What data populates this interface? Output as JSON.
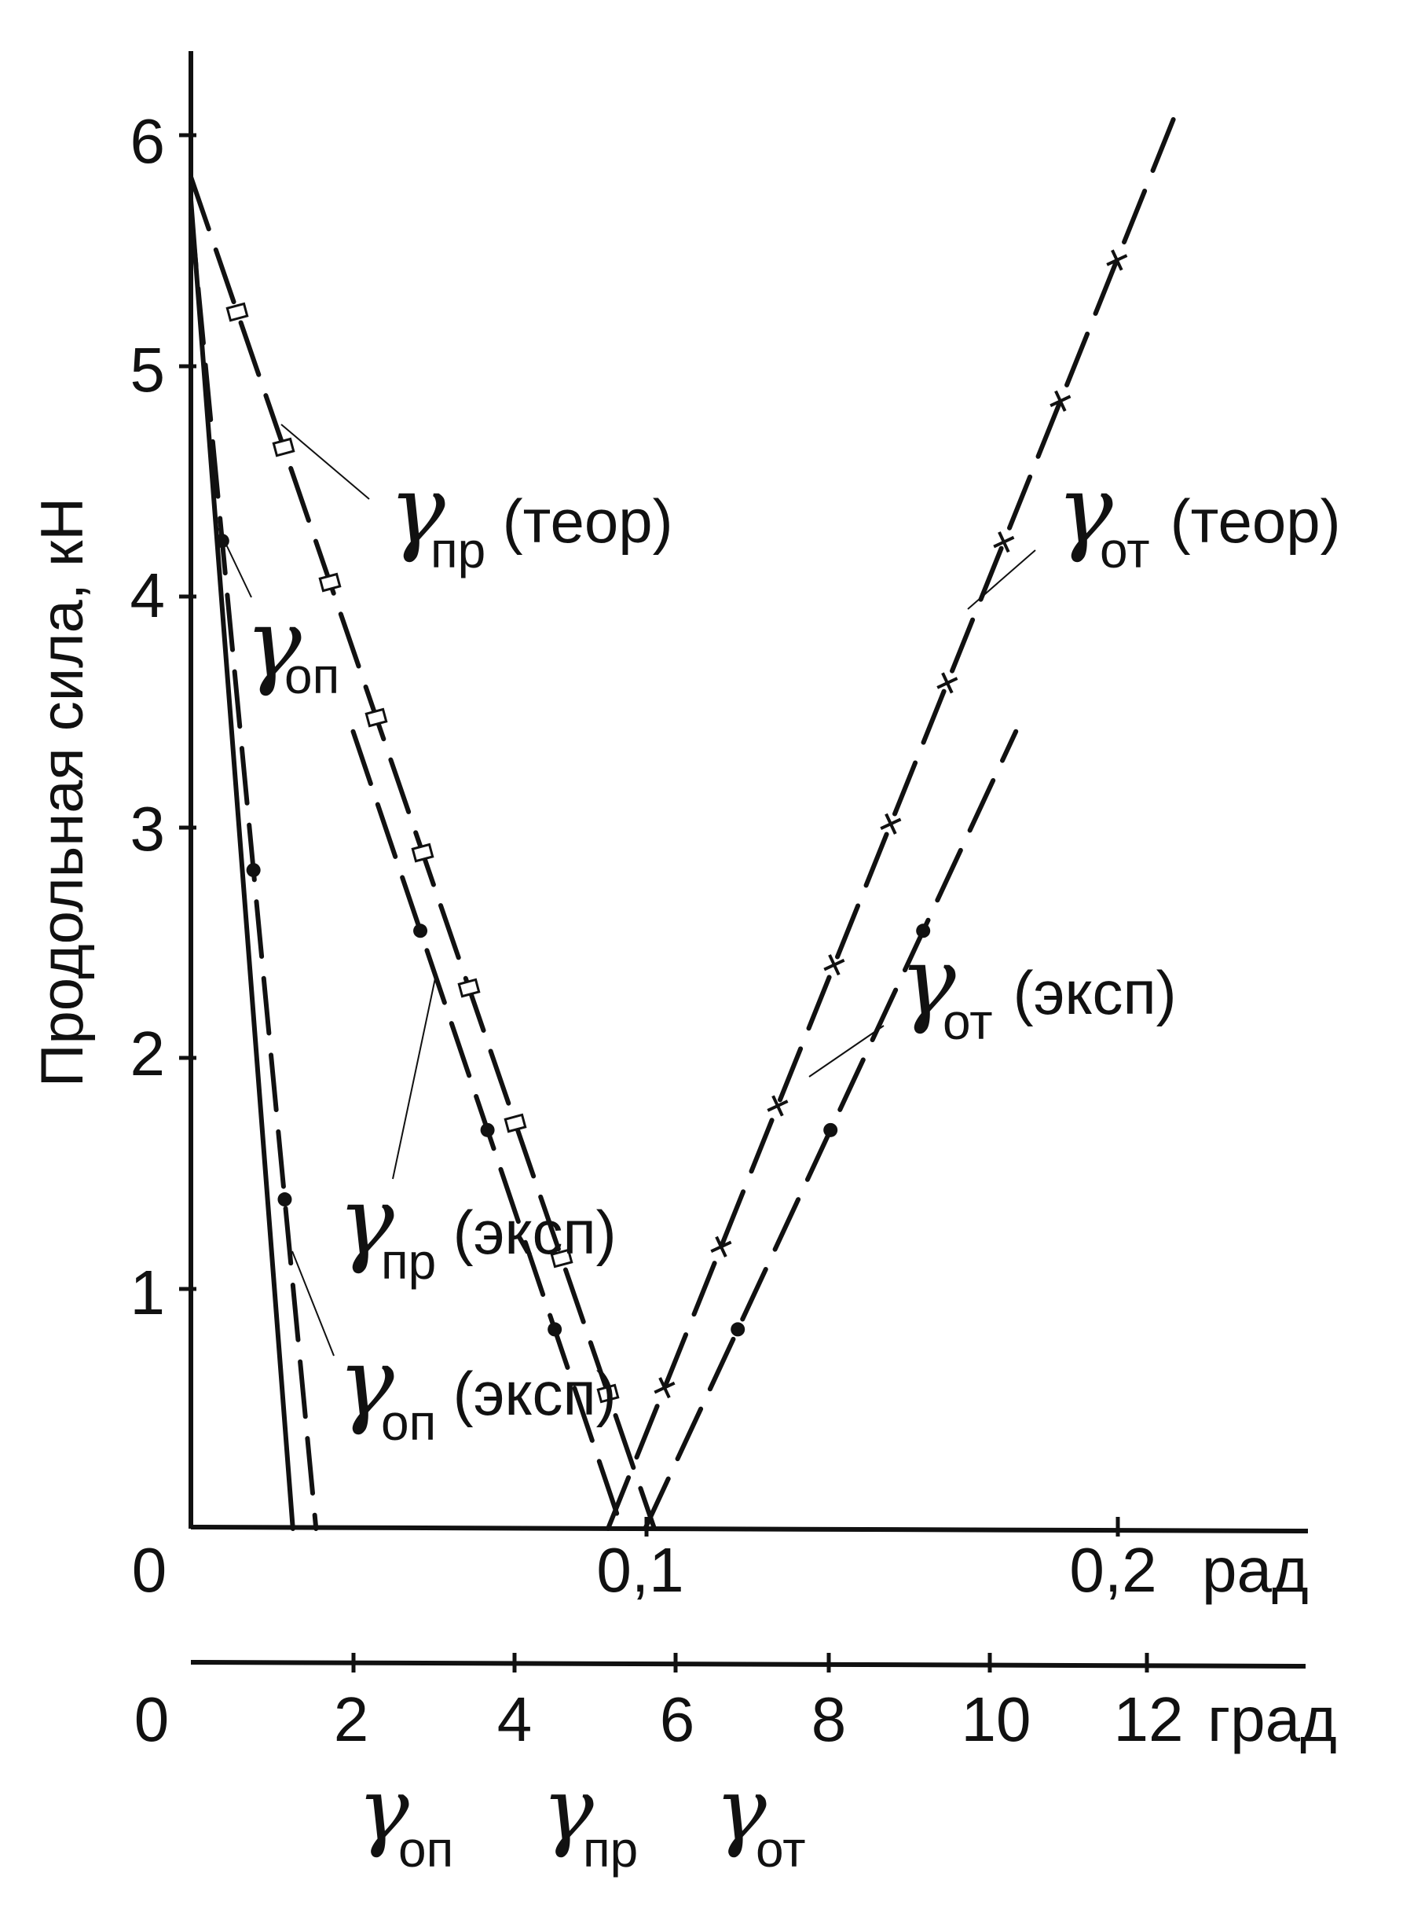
{
  "chart_data": {
    "type": "line",
    "ylabel": "Продольная сила, кН",
    "y_ticks": [
      "1",
      "2",
      "3",
      "4",
      "5",
      "6"
    ],
    "ylim": [
      0,
      6.3
    ],
    "x_rad_ticks": [
      "0",
      "0,1",
      "0,2"
    ],
    "x_rad_unit": "рад",
    "xlim_rad": [
      0,
      0.24
    ],
    "x_deg_ticks": [
      "0",
      "2",
      "4",
      "6",
      "8",
      "10",
      "12"
    ],
    "x_deg_unit": "град",
    "bottom_symbols": [
      {
        "symbol": "γ",
        "sub": "оп"
      },
      {
        "symbol": "γ",
        "sub": "пр"
      },
      {
        "symbol": "γ",
        "sub": "от"
      }
    ],
    "series": [
      {
        "name_symbol": "γ",
        "name_sub": "оп",
        "name_suffix": "",
        "style": "solid",
        "marker": "none",
        "x": [
          0.0,
          0.022
        ],
        "y": [
          5.75,
          0
        ]
      },
      {
        "name_symbol": "γ",
        "name_sub": "оп",
        "name_suffix": " (эксп)",
        "style": "dash",
        "marker": "dot",
        "x": [
          0.0,
          0.027
        ],
        "y": [
          5.7,
          0
        ]
      },
      {
        "name_symbol": "γ",
        "name_sub": "пр",
        "name_suffix": " (теор)",
        "style": "dash",
        "marker": "square",
        "x": [
          0.0,
          0.1
        ],
        "y": [
          5.85,
          0
        ]
      },
      {
        "name_symbol": "γ",
        "name_sub": "пр",
        "name_suffix": " (эксп)",
        "style": "dash",
        "marker": "dot",
        "x": [
          0.035,
          0.093
        ],
        "y": [
          3.45,
          0
        ]
      },
      {
        "name_symbol": "γ",
        "name_sub": "от",
        "name_suffix": " (теор)",
        "style": "dash",
        "marker": "cross",
        "x": [
          0.09,
          0.212
        ],
        "y": [
          0,
          6.1
        ]
      },
      {
        "name_symbol": "γ",
        "name_sub": "от",
        "name_suffix": " (эксп)",
        "style": "dash",
        "marker": "dot",
        "x": [
          0.098,
          0.178
        ],
        "y": [
          0,
          3.45
        ]
      }
    ]
  }
}
